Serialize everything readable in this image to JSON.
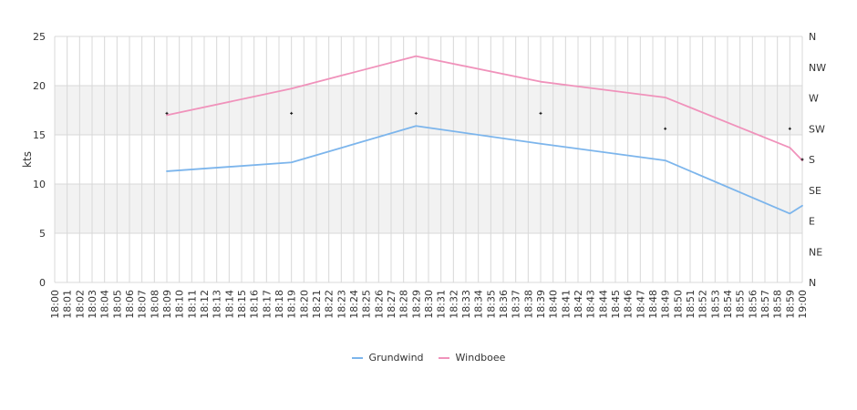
{
  "chart_data": {
    "type": "line",
    "ylabel": "kts",
    "ylim": [
      0,
      25
    ],
    "yticks": [
      "0",
      "5",
      "10",
      "15",
      "20",
      "25"
    ],
    "y2ticks": [
      "N",
      "NE",
      "E",
      "SE",
      "S",
      "SW",
      "W",
      "NW",
      "N"
    ],
    "y2lim": [
      0,
      360
    ],
    "x": [
      "18:00",
      "18:01",
      "18:02",
      "18:03",
      "18:04",
      "18:05",
      "18:06",
      "18:07",
      "18:08",
      "18:09",
      "18:10",
      "18:11",
      "18:12",
      "18:13",
      "18:14",
      "18:15",
      "18:16",
      "18:17",
      "18:18",
      "18:19",
      "18:20",
      "18:21",
      "18:22",
      "18:23",
      "18:24",
      "18:25",
      "18:26",
      "18:27",
      "18:28",
      "18:29",
      "18:30",
      "18:31",
      "18:32",
      "18:33",
      "18:34",
      "18:35",
      "18:36",
      "18:37",
      "18:38",
      "18:39",
      "18:40",
      "18:41",
      "18:42",
      "18:43",
      "18:44",
      "18:45",
      "18:46",
      "18:47",
      "18:48",
      "18:49",
      "18:50",
      "18:51",
      "18:52",
      "18:53",
      "18:54",
      "18:55",
      "18:56",
      "18:57",
      "18:58",
      "18:59",
      "19:00"
    ],
    "grid": true,
    "bands": [
      [
        5,
        10
      ],
      [
        15,
        20
      ]
    ],
    "legend_position": "bottom",
    "series": [
      {
        "name": "Grundwind",
        "color": "#7cb5ec",
        "points": [
          [
            "18:09",
            11.3
          ],
          [
            "18:19",
            12.2
          ],
          [
            "18:29",
            15.9
          ],
          [
            "18:39",
            14.1
          ],
          [
            "18:49",
            12.4
          ],
          [
            "18:59",
            7.0
          ],
          [
            "19:00",
            7.8
          ]
        ]
      },
      {
        "name": "Windboee",
        "color": "#f092bb",
        "points": [
          [
            "18:09",
            17.0
          ],
          [
            "18:19",
            19.7
          ],
          [
            "18:29",
            23.0
          ],
          [
            "18:39",
            20.4
          ],
          [
            "18:49",
            18.8
          ],
          [
            "18:59",
            13.7
          ],
          [
            "19:00",
            12.4
          ]
        ]
      }
    ],
    "direction": {
      "points": [
        [
          "18:09",
          247.5
        ],
        [
          "18:19",
          247.5
        ],
        [
          "18:29",
          247.5
        ],
        [
          "18:39",
          247.5
        ],
        [
          "18:49",
          225
        ],
        [
          "18:59",
          225
        ],
        [
          "19:00",
          180
        ]
      ]
    }
  }
}
